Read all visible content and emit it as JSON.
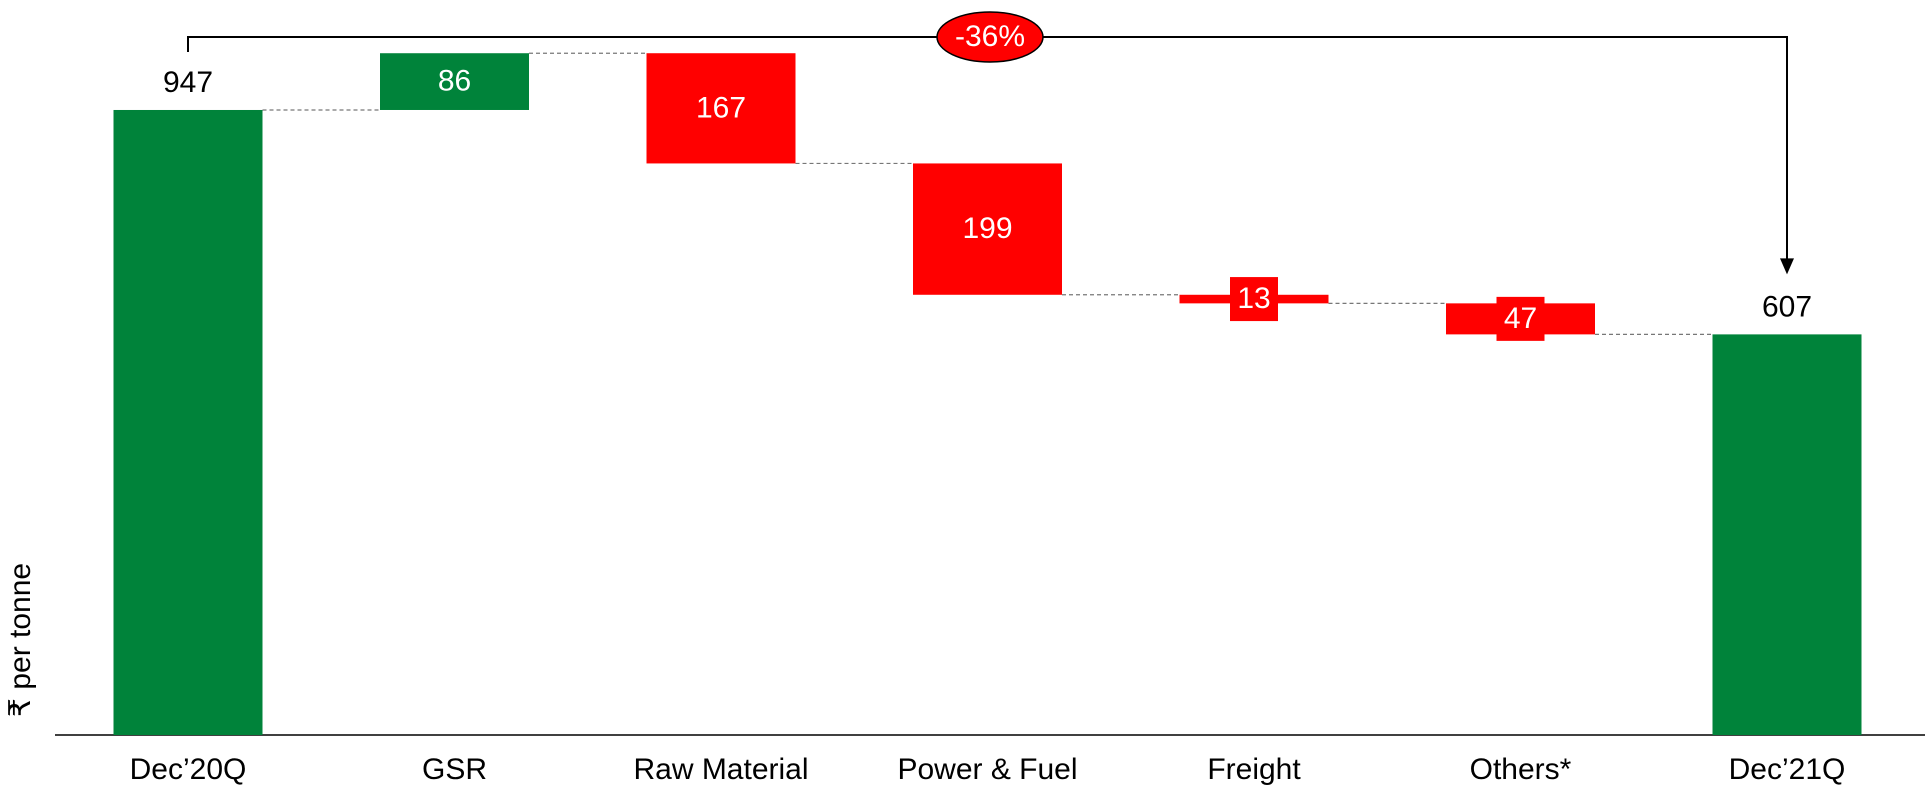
{
  "chart_data": {
    "type": "waterfall",
    "categories": [
      "Dec’20Q",
      "GSR",
      "Raw Material",
      "Power & Fuel",
      "Freight",
      "Others*",
      "Dec’21Q"
    ],
    "values": [
      947,
      86,
      -167,
      -199,
      -13,
      -47,
      607
    ],
    "value_labels": [
      "947",
      "86",
      "167",
      "199",
      "13",
      "47",
      "607"
    ],
    "y_label": "₹ per tonne",
    "annotation": "-36%",
    "ylim": [
      0,
      1100
    ],
    "total_color": "#00833a",
    "increase_color": "#00833a",
    "decrease_color": "#ff0000"
  }
}
